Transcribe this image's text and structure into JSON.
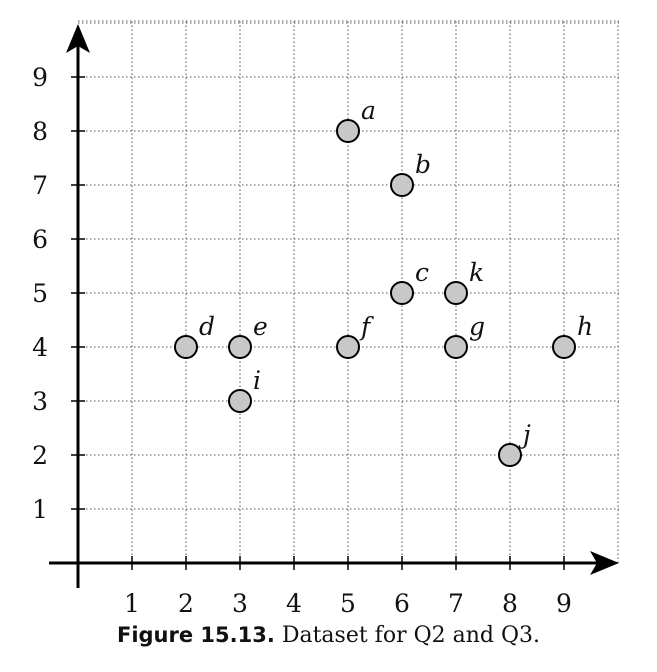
{
  "chart_data": {
    "type": "scatter",
    "xlim": [
      0,
      10
    ],
    "ylim": [
      0,
      10
    ],
    "x_ticks": [
      1,
      2,
      3,
      4,
      5,
      6,
      7,
      8,
      9
    ],
    "y_ticks": [
      1,
      2,
      3,
      4,
      5,
      6,
      7,
      8,
      9
    ],
    "grid": true,
    "points": [
      {
        "label": "a",
        "x": 5,
        "y": 8
      },
      {
        "label": "b",
        "x": 6,
        "y": 7
      },
      {
        "label": "c",
        "x": 6,
        "y": 5
      },
      {
        "label": "d",
        "x": 2,
        "y": 4
      },
      {
        "label": "e",
        "x": 3,
        "y": 4
      },
      {
        "label": "f",
        "x": 5,
        "y": 4
      },
      {
        "label": "g",
        "x": 7,
        "y": 4
      },
      {
        "label": "h",
        "x": 9,
        "y": 4
      },
      {
        "label": "i",
        "x": 3,
        "y": 3
      },
      {
        "label": "j",
        "x": 8,
        "y": 2
      },
      {
        "label": "k",
        "x": 7,
        "y": 5
      }
    ],
    "point_fill": "#c8c8c8",
    "point_stroke": "#000000"
  },
  "caption": {
    "number": "Figure 15.13.",
    "text": "Dataset for Q2 and Q3."
  }
}
